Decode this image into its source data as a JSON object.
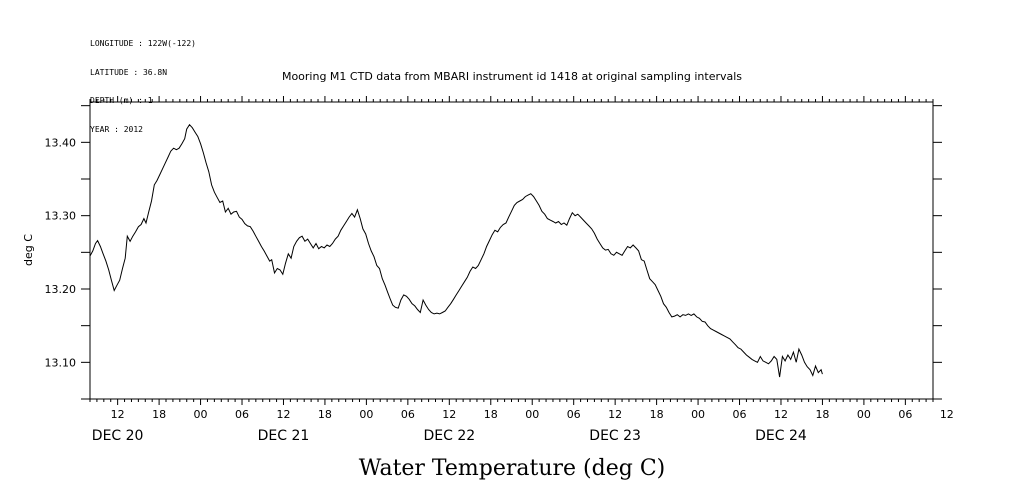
{
  "header": {
    "longitude": "LONGITUDE : 122W(-122)",
    "latitude": "LATITUDE : 36.8N",
    "depth": "DEPTH (m) : 1",
    "year": "YEAR : 2012"
  },
  "chart_data": {
    "type": "line",
    "title": "Mooring M1 CTD data from MBARI instrument id 1418 at original sampling intervals",
    "ylabel": "deg C",
    "bottom_title": "Water Temperature (deg C)",
    "ylim": [
      13.05,
      13.455
    ],
    "xlim": [
      8,
      130
    ],
    "y_ticks": [
      13.1,
      13.2,
      13.3,
      13.4
    ],
    "y_tick_labels": [
      "13.10",
      "13.20",
      "13.30",
      "13.40"
    ],
    "x_ticks": [
      12,
      18,
      24,
      30,
      36,
      42,
      48,
      54,
      60,
      66,
      72,
      78,
      84,
      90,
      96,
      102,
      108,
      114,
      120,
      126
    ],
    "x_tick_labels": [
      "12",
      "18",
      "00",
      "06",
      "12",
      "18",
      "00",
      "06",
      "12",
      "18",
      "00",
      "06",
      "12",
      "18",
      "00",
      "06",
      "12",
      "18",
      "00",
      "06"
    ],
    "extra_x_tick": {
      "x": 132,
      "label": "12"
    },
    "day_labels": [
      {
        "x": 12,
        "label": "DEC 20"
      },
      {
        "x": 36,
        "label": "DEC 21"
      },
      {
        "x": 60,
        "label": "DEC 22"
      },
      {
        "x": 84,
        "label": "DEC 23"
      },
      {
        "x": 108,
        "label": "DEC 24"
      }
    ],
    "x_note": "x values are hours after 00:00 on Dec 20, 2012",
    "series": [
      {
        "points": [
          [
            8.0,
            13.245
          ],
          [
            8.4,
            13.252
          ],
          [
            8.8,
            13.262
          ],
          [
            9.1,
            13.266
          ],
          [
            9.5,
            13.258
          ],
          [
            9.9,
            13.248
          ],
          [
            10.3,
            13.238
          ],
          [
            10.7,
            13.226
          ],
          [
            11.1,
            13.212
          ],
          [
            11.5,
            13.198
          ],
          [
            11.9,
            13.205
          ],
          [
            12.3,
            13.212
          ],
          [
            12.7,
            13.228
          ],
          [
            13.1,
            13.242
          ],
          [
            13.4,
            13.272
          ],
          [
            13.8,
            13.265
          ],
          [
            14.2,
            13.272
          ],
          [
            14.6,
            13.278
          ],
          [
            15.0,
            13.285
          ],
          [
            15.4,
            13.288
          ],
          [
            15.8,
            13.296
          ],
          [
            16.1,
            13.29
          ],
          [
            16.5,
            13.305
          ],
          [
            16.9,
            13.32
          ],
          [
            17.3,
            13.342
          ],
          [
            17.7,
            13.348
          ],
          [
            18.1,
            13.356
          ],
          [
            18.5,
            13.364
          ],
          [
            18.9,
            13.372
          ],
          [
            19.3,
            13.38
          ],
          [
            19.7,
            13.388
          ],
          [
            20.1,
            13.392
          ],
          [
            20.5,
            13.39
          ],
          [
            20.9,
            13.392
          ],
          [
            21.3,
            13.398
          ],
          [
            21.7,
            13.405
          ],
          [
            22.0,
            13.418
          ],
          [
            22.4,
            13.424
          ],
          [
            22.8,
            13.42
          ],
          [
            23.2,
            13.414
          ],
          [
            23.6,
            13.408
          ],
          [
            24.0,
            13.398
          ],
          [
            24.4,
            13.386
          ],
          [
            24.8,
            13.372
          ],
          [
            25.2,
            13.36
          ],
          [
            25.6,
            13.342
          ],
          [
            26.0,
            13.332
          ],
          [
            26.4,
            13.325
          ],
          [
            26.8,
            13.318
          ],
          [
            27.2,
            13.32
          ],
          [
            27.6,
            13.305
          ],
          [
            28.0,
            13.31
          ],
          [
            28.4,
            13.302
          ],
          [
            28.8,
            13.305
          ],
          [
            29.2,
            13.306
          ],
          [
            29.6,
            13.298
          ],
          [
            30.0,
            13.295
          ],
          [
            30.4,
            13.289
          ],
          [
            30.8,
            13.286
          ],
          [
            31.2,
            13.285
          ],
          [
            31.6,
            13.279
          ],
          [
            32.0,
            13.272
          ],
          [
            32.4,
            13.265
          ],
          [
            32.8,
            13.258
          ],
          [
            33.2,
            13.252
          ],
          [
            33.6,
            13.245
          ],
          [
            34.0,
            13.238
          ],
          [
            34.3,
            13.24
          ],
          [
            34.7,
            13.222
          ],
          [
            35.1,
            13.228
          ],
          [
            35.5,
            13.226
          ],
          [
            35.9,
            13.22
          ],
          [
            36.3,
            13.235
          ],
          [
            36.7,
            13.248
          ],
          [
            37.1,
            13.242
          ],
          [
            37.5,
            13.258
          ],
          [
            37.9,
            13.265
          ],
          [
            38.3,
            13.27
          ],
          [
            38.7,
            13.272
          ],
          [
            39.1,
            13.265
          ],
          [
            39.5,
            13.268
          ],
          [
            39.9,
            13.262
          ],
          [
            40.3,
            13.256
          ],
          [
            40.7,
            13.262
          ],
          [
            41.1,
            13.255
          ],
          [
            41.5,
            13.258
          ],
          [
            41.9,
            13.256
          ],
          [
            42.3,
            13.26
          ],
          [
            42.7,
            13.258
          ],
          [
            43.1,
            13.262
          ],
          [
            43.5,
            13.268
          ],
          [
            43.9,
            13.272
          ],
          [
            44.3,
            13.28
          ],
          [
            44.7,
            13.286
          ],
          [
            45.1,
            13.292
          ],
          [
            45.5,
            13.298
          ],
          [
            45.9,
            13.303
          ],
          [
            46.3,
            13.298
          ],
          [
            46.7,
            13.308
          ],
          [
            47.1,
            13.296
          ],
          [
            47.5,
            13.282
          ],
          [
            47.9,
            13.275
          ],
          [
            48.3,
            13.262
          ],
          [
            48.7,
            13.252
          ],
          [
            49.1,
            13.244
          ],
          [
            49.5,
            13.232
          ],
          [
            49.9,
            13.228
          ],
          [
            50.3,
            13.214
          ],
          [
            50.7,
            13.205
          ],
          [
            51.1,
            13.195
          ],
          [
            51.5,
            13.185
          ],
          [
            51.8,
            13.178
          ],
          [
            52.2,
            13.175
          ],
          [
            52.6,
            13.174
          ],
          [
            53.0,
            13.185
          ],
          [
            53.4,
            13.192
          ],
          [
            53.8,
            13.19
          ],
          [
            54.2,
            13.186
          ],
          [
            54.6,
            13.18
          ],
          [
            55.0,
            13.177
          ],
          [
            55.4,
            13.172
          ],
          [
            55.8,
            13.168
          ],
          [
            56.2,
            13.185
          ],
          [
            56.6,
            13.178
          ],
          [
            57.0,
            13.172
          ],
          [
            57.4,
            13.168
          ],
          [
            57.8,
            13.166
          ],
          [
            58.2,
            13.167
          ],
          [
            58.6,
            13.166
          ],
          [
            59.0,
            13.168
          ],
          [
            59.4,
            13.17
          ],
          [
            59.8,
            13.175
          ],
          [
            60.2,
            13.18
          ],
          [
            60.6,
            13.186
          ],
          [
            61.0,
            13.192
          ],
          [
            61.4,
            13.198
          ],
          [
            61.8,
            13.204
          ],
          [
            62.2,
            13.21
          ],
          [
            62.6,
            13.216
          ],
          [
            63.0,
            13.224
          ],
          [
            63.4,
            13.23
          ],
          [
            63.8,
            13.228
          ],
          [
            64.2,
            13.232
          ],
          [
            64.6,
            13.24
          ],
          [
            65.0,
            13.248
          ],
          [
            65.4,
            13.258
          ],
          [
            65.8,
            13.266
          ],
          [
            66.2,
            13.274
          ],
          [
            66.6,
            13.28
          ],
          [
            67.0,
            13.278
          ],
          [
            67.4,
            13.284
          ],
          [
            67.8,
            13.288
          ],
          [
            68.2,
            13.29
          ],
          [
            68.6,
            13.298
          ],
          [
            69.0,
            13.306
          ],
          [
            69.4,
            13.314
          ],
          [
            69.8,
            13.318
          ],
          [
            70.2,
            13.32
          ],
          [
            70.6,
            13.322
          ],
          [
            71.0,
            13.326
          ],
          [
            71.4,
            13.328
          ],
          [
            71.8,
            13.33
          ],
          [
            72.2,
            13.326
          ],
          [
            72.6,
            13.32
          ],
          [
            73.0,
            13.314
          ],
          [
            73.4,
            13.306
          ],
          [
            73.8,
            13.302
          ],
          [
            74.2,
            13.296
          ],
          [
            74.6,
            13.294
          ],
          [
            75.0,
            13.292
          ],
          [
            75.4,
            13.29
          ],
          [
            75.8,
            13.292
          ],
          [
            76.2,
            13.288
          ],
          [
            76.6,
            13.29
          ],
          [
            77.0,
            13.287
          ],
          [
            77.4,
            13.296
          ],
          [
            77.8,
            13.304
          ],
          [
            78.2,
            13.3
          ],
          [
            78.6,
            13.302
          ],
          [
            79.0,
            13.298
          ],
          [
            79.4,
            13.294
          ],
          [
            79.8,
            13.29
          ],
          [
            80.2,
            13.286
          ],
          [
            80.6,
            13.282
          ],
          [
            81.0,
            13.276
          ],
          [
            81.4,
            13.268
          ],
          [
            81.8,
            13.262
          ],
          [
            82.2,
            13.256
          ],
          [
            82.6,
            13.253
          ],
          [
            83.0,
            13.254
          ],
          [
            83.4,
            13.248
          ],
          [
            83.8,
            13.246
          ],
          [
            84.2,
            13.25
          ],
          [
            84.6,
            13.248
          ],
          [
            85.0,
            13.246
          ],
          [
            85.4,
            13.252
          ],
          [
            85.8,
            13.258
          ],
          [
            86.2,
            13.256
          ],
          [
            86.6,
            13.26
          ],
          [
            87.0,
            13.256
          ],
          [
            87.4,
            13.252
          ],
          [
            87.8,
            13.24
          ],
          [
            88.2,
            13.238
          ],
          [
            88.6,
            13.226
          ],
          [
            89.0,
            13.214
          ],
          [
            89.4,
            13.21
          ],
          [
            89.8,
            13.206
          ],
          [
            90.2,
            13.198
          ],
          [
            90.6,
            13.19
          ],
          [
            91.0,
            13.18
          ],
          [
            91.4,
            13.175
          ],
          [
            91.8,
            13.168
          ],
          [
            92.2,
            13.162
          ],
          [
            92.6,
            13.163
          ],
          [
            93.0,
            13.165
          ],
          [
            93.4,
            13.162
          ],
          [
            93.8,
            13.165
          ],
          [
            94.2,
            13.164
          ],
          [
            94.6,
            13.166
          ],
          [
            95.0,
            13.164
          ],
          [
            95.4,
            13.166
          ],
          [
            95.8,
            13.162
          ],
          [
            96.2,
            13.16
          ],
          [
            96.6,
            13.156
          ],
          [
            97.0,
            13.155
          ],
          [
            97.4,
            13.15
          ],
          [
            97.8,
            13.146
          ],
          [
            98.2,
            13.144
          ],
          [
            98.6,
            13.142
          ],
          [
            99.0,
            13.14
          ],
          [
            99.4,
            13.138
          ],
          [
            99.8,
            13.136
          ],
          [
            100.2,
            13.134
          ],
          [
            100.6,
            13.132
          ],
          [
            101.0,
            13.128
          ],
          [
            101.4,
            13.124
          ],
          [
            101.8,
            13.12
          ],
          [
            102.2,
            13.118
          ],
          [
            102.6,
            13.114
          ],
          [
            103.0,
            13.11
          ],
          [
            103.4,
            13.107
          ],
          [
            103.8,
            13.104
          ],
          [
            104.2,
            13.102
          ],
          [
            104.6,
            13.1
          ],
          [
            105.0,
            13.108
          ],
          [
            105.4,
            13.102
          ],
          [
            105.8,
            13.1
          ],
          [
            106.2,
            13.098
          ],
          [
            106.6,
            13.102
          ],
          [
            107.0,
            13.108
          ],
          [
            107.4,
            13.104
          ],
          [
            107.8,
            13.08
          ],
          [
            108.2,
            13.108
          ],
          [
            108.6,
            13.102
          ],
          [
            109.0,
            13.11
          ],
          [
            109.4,
            13.104
          ],
          [
            109.8,
            13.114
          ],
          [
            110.2,
            13.1
          ],
          [
            110.6,
            13.118
          ],
          [
            111.0,
            13.11
          ],
          [
            111.4,
            13.1
          ],
          [
            111.8,
            13.094
          ],
          [
            112.2,
            13.09
          ],
          [
            112.6,
            13.082
          ],
          [
            113.0,
            13.095
          ],
          [
            113.4,
            13.086
          ],
          [
            113.8,
            13.09
          ],
          [
            114.0,
            13.084
          ]
        ]
      }
    ]
  }
}
